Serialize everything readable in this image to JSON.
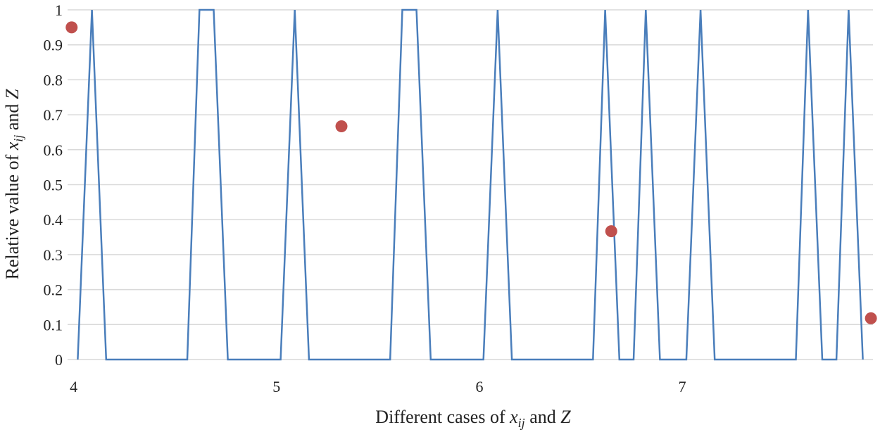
{
  "chart_data": {
    "type": "line",
    "title": "",
    "xlabel_parts": {
      "before": "Different cases of ",
      "var1": "x",
      "sub1": "ij",
      "mid": " and ",
      "var2": "Z"
    },
    "ylabel_parts": {
      "before": "Relative value of ",
      "var1": "x",
      "sub1": "ij",
      "mid": " and ",
      "var2": "Z"
    },
    "xlim": [
      3.97,
      7.94
    ],
    "ylim": [
      0,
      1
    ],
    "x_ticks": [
      4,
      5,
      6,
      7
    ],
    "x_tick_labels": [
      "4",
      "5",
      "6",
      "7"
    ],
    "y_ticks": [
      0,
      0.1,
      0.2,
      0.3,
      0.4,
      0.5,
      0.6,
      0.7,
      0.8,
      0.9,
      1
    ],
    "y_tick_labels": [
      "0",
      "0.1",
      "0.2",
      "0.3",
      "0.4",
      "0.5",
      "0.6",
      "0.7",
      "0.8",
      "0.9",
      "1"
    ],
    "grid": true,
    "series": [
      {
        "name": "x_ij",
        "kind": "line",
        "color": "#4a7ebb",
        "x": [
          4.02,
          4.09,
          4.16,
          4.56,
          4.62,
          4.69,
          4.76,
          5.02,
          5.09,
          5.16,
          5.56,
          5.62,
          5.69,
          5.76,
          6.02,
          6.09,
          6.16,
          6.56,
          6.62,
          6.69,
          6.76,
          6.82,
          6.89,
          7.02,
          7.09,
          7.16,
          7.56,
          7.62,
          7.69,
          7.76,
          7.82,
          7.89
        ],
        "y": [
          0,
          1,
          0,
          0,
          1,
          1,
          0,
          0,
          1,
          0,
          0,
          1,
          1,
          0,
          0,
          1,
          0,
          0,
          1,
          0,
          0,
          1,
          0,
          0,
          1,
          0,
          0,
          1,
          0,
          0,
          1,
          0
        ]
      },
      {
        "name": "Z",
        "kind": "scatter",
        "color": "#c0504d",
        "x": [
          3.99,
          5.32,
          6.65,
          7.93
        ],
        "y": [
          0.95,
          0.667,
          0.367,
          0.118
        ]
      }
    ]
  }
}
